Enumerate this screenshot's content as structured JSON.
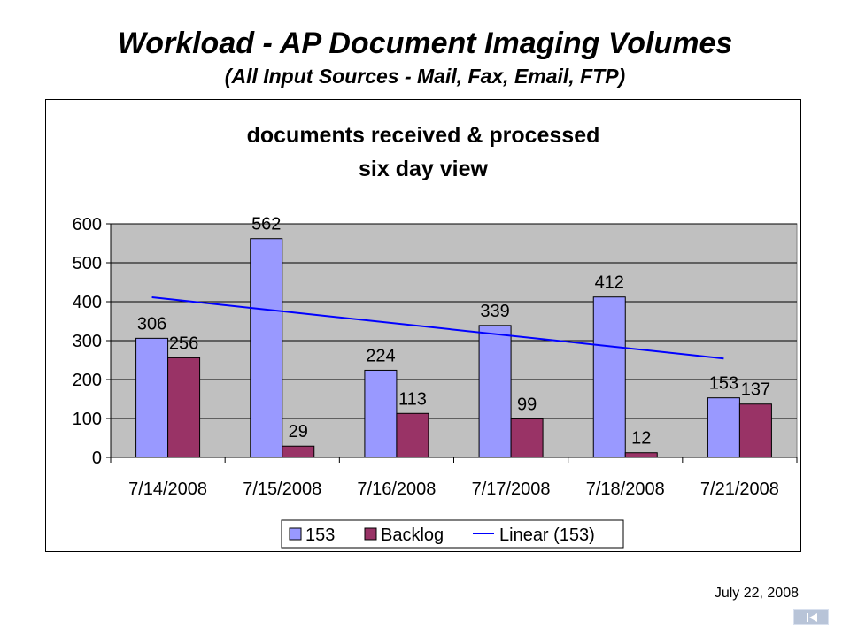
{
  "slide": {
    "title": "Workload - AP Document Imaging Volumes",
    "subtitle": "(All Input Sources - Mail, Fax, Email, FTP)",
    "date": "July 22, 2008",
    "nav_icon": "previous-slide-icon"
  },
  "chart_data": {
    "type": "bar",
    "title_lines": [
      "documents received & processed",
      "six day view"
    ],
    "categories": [
      "7/14/2008",
      "7/15/2008",
      "7/16/2008",
      "7/17/2008",
      "7/18/2008",
      "7/21/2008"
    ],
    "series": [
      {
        "name": "153",
        "values": [
          306,
          562,
          224,
          339,
          412,
          153
        ],
        "color": "#9999ff"
      },
      {
        "name": "Backlog",
        "values": [
          256,
          29,
          113,
          99,
          12,
          137
        ],
        "color": "#993366"
      }
    ],
    "trendline": {
      "name": "Linear (153)",
      "of_series": "153",
      "type": "linear",
      "color": "#0000ff"
    },
    "ylim": [
      0,
      600
    ],
    "yticks": [
      0,
      100,
      200,
      300,
      400,
      500,
      600
    ],
    "plot_background": "#c0c0c0",
    "grid": true,
    "legend": "bottom"
  }
}
